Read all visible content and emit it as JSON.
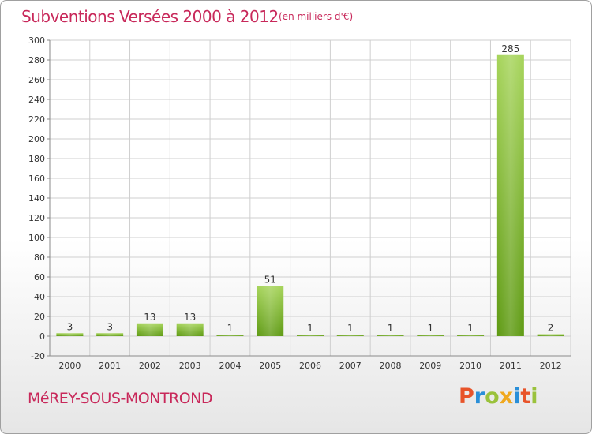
{
  "header": {
    "title": "Subventions Versées 2000 à 2012",
    "subtitle": "(en milliers d'€)"
  },
  "footer": {
    "commune": "MéREY-SOUS-MONTROND",
    "logo_letters": [
      {
        "char": "P",
        "color": "#e8542a"
      },
      {
        "char": "r",
        "color": "#2a8fd8"
      },
      {
        "char": "o",
        "color": "#9ac23c"
      },
      {
        "char": "x",
        "color": "#f0a81e"
      },
      {
        "char": "i",
        "color": "#2a8fd8"
      },
      {
        "char": "t",
        "color": "#e8542a"
      },
      {
        "char": "i",
        "color": "#9ac23c"
      }
    ]
  },
  "chart_data": {
    "type": "bar",
    "title": "Subventions Versées 2000 à 2012",
    "subtitle": "(en milliers d'€)",
    "categories": [
      "2000",
      "2001",
      "2002",
      "2003",
      "2004",
      "2005",
      "2006",
      "2007",
      "2008",
      "2009",
      "2010",
      "2011",
      "2012"
    ],
    "values": [
      3,
      3,
      13,
      13,
      1,
      51,
      1,
      1,
      1,
      1,
      1,
      285,
      2
    ],
    "ylim": [
      -20,
      300
    ],
    "yticks": [
      -20,
      0,
      20,
      40,
      60,
      80,
      100,
      120,
      140,
      160,
      180,
      200,
      220,
      240,
      260,
      280,
      300
    ],
    "grid": true,
    "colors": {
      "bar_light": "#a6d45a",
      "bar_dark": "#5e9a12",
      "grid": "#cfcfcf",
      "axis": "#8a8a8a",
      "title": "#c8285a"
    }
  }
}
